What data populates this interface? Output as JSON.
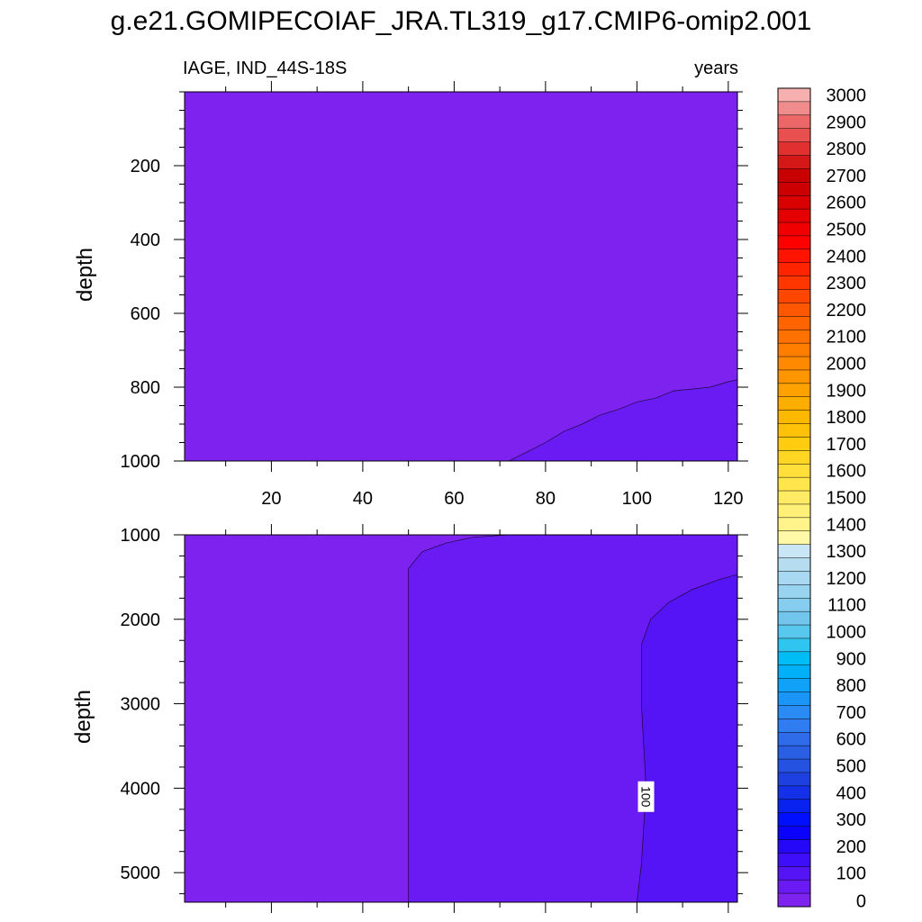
{
  "chart_data": {
    "type": "heatmap",
    "title": "g.e21.GOMIPECOIAF_JRA.TL319_g17.CMIP6-omip2.001",
    "variable_label": "IAGE, IND_44S-18S",
    "units_label": "years",
    "panels": [
      {
        "name": "upper",
        "ylabel": "depth",
        "xlim": [
          1,
          122
        ],
        "ylim": [
          0,
          1000
        ],
        "y_inverted": true,
        "yticks": [
          200,
          400,
          600,
          800,
          1000
        ],
        "xticks": [
          20,
          40,
          60,
          80,
          100,
          120
        ],
        "x_tick_labels_shown": true,
        "background_level": "0-50",
        "regions": [
          {
            "level": "50-100",
            "boundary": [
              [
                72,
                1000
              ],
              [
                76,
                975
              ],
              [
                80,
                950
              ],
              [
                84,
                920
              ],
              [
                88,
                900
              ],
              [
                92,
                875
              ],
              [
                96,
                860
              ],
              [
                100,
                840
              ],
              [
                104,
                830
              ],
              [
                108,
                810
              ],
              [
                112,
                805
              ],
              [
                116,
                800
              ],
              [
                120,
                785
              ],
              [
                122,
                780
              ],
              [
                122,
                1000
              ]
            ]
          }
        ],
        "contour_labels": []
      },
      {
        "name": "lower",
        "ylabel": "depth",
        "xlim": [
          1,
          122
        ],
        "ylim": [
          1000,
          5350
        ],
        "y_inverted": true,
        "yticks": [
          1000,
          2000,
          3000,
          4000,
          5000
        ],
        "xticks": [
          20,
          40,
          60,
          80,
          100,
          120
        ],
        "x_tick_labels_shown": false,
        "background_level": "0-50",
        "regions": [
          {
            "level": "50-100",
            "boundary": [
              [
                50,
                5350
              ],
              [
                50,
                1400
              ],
              [
                53,
                1200
              ],
              [
                58,
                1100
              ],
              [
                64,
                1030
              ],
              [
                72,
                1000
              ],
              [
                122,
                1000
              ],
              [
                122,
                5350
              ]
            ]
          },
          {
            "level": "100-150",
            "boundary": [
              [
                100,
                5350
              ],
              [
                101,
                4900
              ],
              [
                102,
                4000
              ],
              [
                101,
                3000
              ],
              [
                101,
                2300
              ],
              [
                103,
                2000
              ],
              [
                107,
                1800
              ],
              [
                112,
                1650
              ],
              [
                118,
                1530
              ],
              [
                122,
                1470
              ],
              [
                122,
                5350
              ]
            ]
          }
        ],
        "contour_labels": [
          {
            "text": "100",
            "x": 102,
            "y": 4100
          }
        ]
      }
    ],
    "colorbar": {
      "labels": [
        "0",
        "100",
        "200",
        "300",
        "400",
        "500",
        "600",
        "700",
        "800",
        "900",
        "1000",
        "1100",
        "1200",
        "1300",
        "1400",
        "1500",
        "1600",
        "1700",
        "1800",
        "1900",
        "2000",
        "2100",
        "2200",
        "2300",
        "2400",
        "2500",
        "2600",
        "2700",
        "2800",
        "2900",
        "3000"
      ],
      "colors": [
        "#7e22f0",
        "#6a1af2",
        "#5514f5",
        "#3e0ef8",
        "#2508f8",
        "#0a02fa",
        "#0010ff",
        "#0a22f0",
        "#1430e8",
        "#1e40e0",
        "#2552e0",
        "#2a5fe4",
        "#2f6cea",
        "#2f7df0",
        "#2a8bf4",
        "#1c95f8",
        "#10a2f8",
        "#00b0f8",
        "#00bdf6",
        "#30c5f0",
        "#58c8ee",
        "#72c6ee",
        "#86cdf0",
        "#98d3f0",
        "#a8d8f2",
        "#b6dcf0",
        "#c8e6f6",
        "#fff8a6",
        "#fff38c",
        "#fff078",
        "#ffec64",
        "#ffe64c",
        "#ffe03a",
        "#ffd622",
        "#ffcc10",
        "#ffc208",
        "#ffb800",
        "#ffae00",
        "#ffa200",
        "#ff9600",
        "#ff8a00",
        "#ff7e00",
        "#ff7100",
        "#ff6400",
        "#ff5600",
        "#ff4600",
        "#ff3600",
        "#ff2400",
        "#ff1400",
        "#ff0000",
        "#f00000",
        "#e40000",
        "#d80000",
        "#cc0000",
        "#c80000",
        "#d41818",
        "#e03030",
        "#e85050",
        "#ec6868",
        "#f08c8c",
        "#f6b0b0"
      ]
    }
  }
}
